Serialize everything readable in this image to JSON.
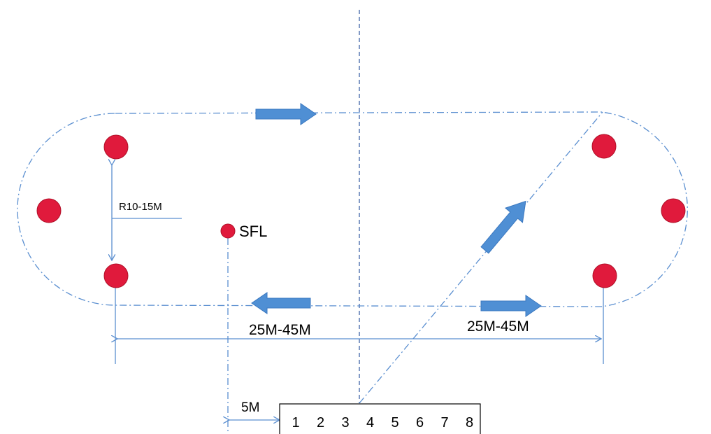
{
  "labels": {
    "radius": "R10-15M",
    "sfl": "SFL",
    "span_left": "25M-45M",
    "span_right": "25M-45M",
    "offset": "5M"
  },
  "start_boxes": [
    "1",
    "2",
    "3",
    "4",
    "5",
    "6",
    "7",
    "8"
  ],
  "colors": {
    "cone": "#e01a3c",
    "cone_edge": "#b01028",
    "arrow": "#4f8fd4",
    "line": "#5b8fd0",
    "centerline": "#3f64a8"
  }
}
